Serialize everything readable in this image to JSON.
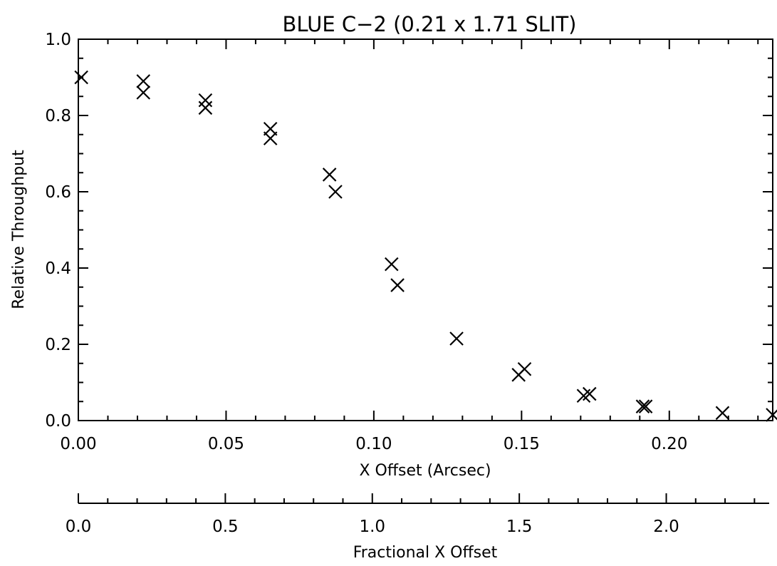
{
  "chart_data": {
    "type": "scatter",
    "title": "BLUE C−2 (0.21 x 1.71 SLIT)",
    "xlabel": "X Offset (Arcsec)",
    "ylabel": "Relative Throughput",
    "xlim": [
      0.0,
      0.235
    ],
    "ylim": [
      0.0,
      1.0
    ],
    "x_ticks": [
      "0.00",
      "0.05",
      "0.10",
      "0.15",
      "0.20"
    ],
    "y_ticks": [
      "0.0",
      "0.2",
      "0.4",
      "0.6",
      "0.8",
      "1.0"
    ],
    "marker": "x",
    "grid": false,
    "points": [
      {
        "x": 0.001,
        "y": 0.9
      },
      {
        "x": 0.022,
        "y": 0.89
      },
      {
        "x": 0.022,
        "y": 0.86
      },
      {
        "x": 0.043,
        "y": 0.84
      },
      {
        "x": 0.043,
        "y": 0.82
      },
      {
        "x": 0.065,
        "y": 0.765
      },
      {
        "x": 0.065,
        "y": 0.74
      },
      {
        "x": 0.085,
        "y": 0.645
      },
      {
        "x": 0.087,
        "y": 0.6
      },
      {
        "x": 0.106,
        "y": 0.41
      },
      {
        "x": 0.108,
        "y": 0.355
      },
      {
        "x": 0.128,
        "y": 0.215
      },
      {
        "x": 0.149,
        "y": 0.12
      },
      {
        "x": 0.151,
        "y": 0.135
      },
      {
        "x": 0.171,
        "y": 0.065
      },
      {
        "x": 0.173,
        "y": 0.07
      },
      {
        "x": 0.191,
        "y": 0.037
      },
      {
        "x": 0.192,
        "y": 0.037
      },
      {
        "x": 0.218,
        "y": 0.02
      },
      {
        "x": 0.235,
        "y": 0.015
      }
    ],
    "secondary_axis": {
      "xlabel": "Fractional X Offset",
      "xlim": [
        0.0,
        2.35
      ],
      "x_ticks": [
        "0.0",
        "0.5",
        "1.0",
        "1.5",
        "2.0"
      ]
    }
  }
}
